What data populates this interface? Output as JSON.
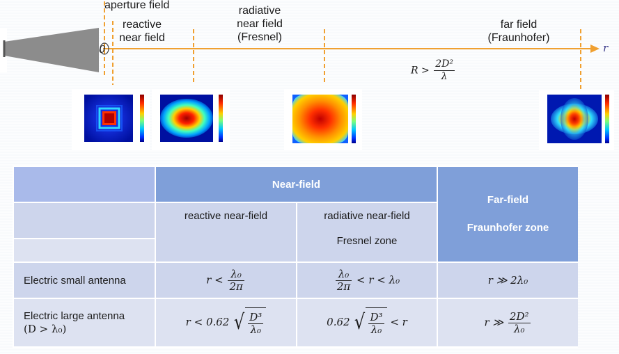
{
  "diagram": {
    "labels": {
      "aperture": "aperture field",
      "reactive": [
        "reactive",
        "near field"
      ],
      "radiative": [
        "radiative",
        "near field",
        "(Fresnel)"
      ],
      "far": [
        "far field",
        "(Fraunhofer)"
      ],
      "origin": "0",
      "axis": "r"
    },
    "condition": {
      "lhs": "R >",
      "num": "2D²",
      "den": "λ"
    },
    "colors": {
      "axis": "#f0a030",
      "horn": "#8c8c8c"
    },
    "heatmaps": [
      {
        "name": "aperture",
        "pattern": "square"
      },
      {
        "name": "reactive",
        "pattern": "ellipse"
      },
      {
        "name": "radiative",
        "pattern": "diamond"
      },
      {
        "name": "far",
        "pattern": "lobes"
      }
    ]
  },
  "table": {
    "header": {
      "near": "Near-field",
      "far_line1": "Far-field",
      "far_line2": "Fraunhofer zone"
    },
    "sub": {
      "reactive": "reactive near-field",
      "radiative_line1": "radiative near-field",
      "radiative_line2": "Fresnel zone"
    },
    "rows": [
      {
        "label": "Electric small antenna",
        "reactive": {
          "lhs": "r <",
          "num": "λ₀",
          "den": "2π"
        },
        "radiative": {
          "num": "λ₀",
          "den": "2π",
          "rhs": "< r < λ₀"
        },
        "far": "r ≫ 2λ₀"
      },
      {
        "label_line1": "Electric large antenna",
        "label_line2": "(D > λ₀)",
        "reactive": {
          "lhs": "r < 0.62",
          "num": "D³",
          "den": "λ₀"
        },
        "radiative": {
          "lhs": "0.62",
          "num": "D³",
          "den": "λ₀",
          "rhs": "< r"
        },
        "far": {
          "lhs": "r ≫",
          "num": "2D²",
          "den": "λ₀"
        }
      }
    ]
  }
}
